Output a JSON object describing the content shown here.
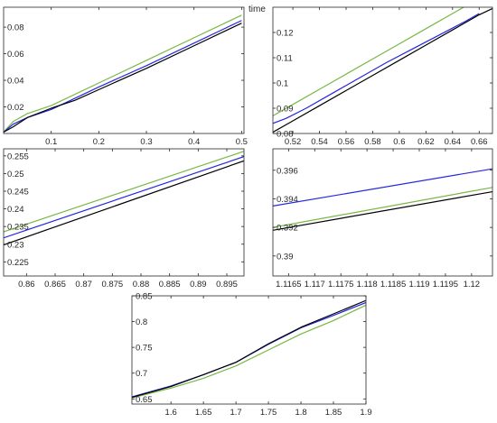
{
  "chart_data": [
    {
      "type": "line",
      "xlim": [
        0,
        0.505
      ],
      "ylim": [
        0,
        0.095
      ],
      "xticks": [
        0.1,
        0.2,
        0.3,
        0.4,
        0.5
      ],
      "yticks": [
        0.02,
        0.04,
        0.06,
        0.08
      ],
      "xtick_labels": [
        "0.1",
        "0.2",
        "0.3",
        "0.4",
        "0.5"
      ],
      "ytick_labels": [
        "0.02",
        "0.04",
        "0.06",
        "0.08"
      ],
      "series": [
        {
          "color": "#77b843",
          "x": [
            0,
            0.02,
            0.05,
            0.1,
            0.2,
            0.3,
            0.4,
            0.5
          ],
          "y": [
            0.001,
            0.009,
            0.015,
            0.021,
            0.038,
            0.055,
            0.072,
            0.089
          ]
        },
        {
          "color": "#2626e0",
          "x": [
            0,
            0.02,
            0.05,
            0.1,
            0.2,
            0.3,
            0.4,
            0.5
          ],
          "y": [
            0.001,
            0.007,
            0.012,
            0.018,
            0.035,
            0.051,
            0.068,
            0.085
          ]
        },
        {
          "color": "#000000",
          "x": [
            0,
            0.02,
            0.05,
            0.1,
            0.15,
            0.2,
            0.3,
            0.4,
            0.5
          ],
          "y": [
            0.001,
            0.005,
            0.012,
            0.019,
            0.025,
            0.033,
            0.049,
            0.066,
            0.083
          ]
        }
      ]
    },
    {
      "type": "line",
      "xlim": [
        0.505,
        0.67
      ],
      "ylim": [
        0.08,
        0.13
      ],
      "xticks": [
        0.52,
        0.54,
        0.56,
        0.58,
        0.6,
        0.62,
        0.64,
        0.66
      ],
      "yticks": [
        0.08,
        0.09,
        0.1,
        0.11,
        0.12
      ],
      "xtick_labels": [
        "0.52",
        "0.54",
        "0.56",
        "0.58",
        "0.6",
        "0.62",
        "0.64",
        "0.66"
      ],
      "ytick_labels": [
        "0.08",
        "0.09",
        "0.1",
        "0.11",
        "0.12"
      ],
      "corner_label": "time",
      "series": [
        {
          "color": "#77b843",
          "x": [
            0.505,
            0.52,
            0.54,
            0.56,
            0.58,
            0.6,
            0.62,
            0.64,
            0.65
          ],
          "y": [
            0.087,
            0.0915,
            0.0975,
            0.1035,
            0.1095,
            0.1155,
            0.1215,
            0.1275,
            0.1305
          ]
        },
        {
          "color": "#2626e0",
          "x": [
            0.505,
            0.515,
            0.53,
            0.55,
            0.57,
            0.59,
            0.61,
            0.63,
            0.65,
            0.66
          ],
          "y": [
            0.084,
            0.086,
            0.09,
            0.096,
            0.102,
            0.108,
            0.1135,
            0.119,
            0.1245,
            0.1275
          ]
        },
        {
          "color": "#000000",
          "x": [
            0.505,
            0.52,
            0.54,
            0.56,
            0.58,
            0.6,
            0.62,
            0.64,
            0.66,
            0.67
          ],
          "y": [
            0.0805,
            0.085,
            0.091,
            0.097,
            0.103,
            0.109,
            0.115,
            0.121,
            0.127,
            0.1295
          ]
        }
      ]
    },
    {
      "type": "line",
      "xlim": [
        0.856,
        0.898
      ],
      "ylim": [
        0.221,
        0.257
      ],
      "xticks": [
        0.86,
        0.865,
        0.87,
        0.875,
        0.88,
        0.885,
        0.89,
        0.895
      ],
      "yticks": [
        0.225,
        0.23,
        0.235,
        0.24,
        0.245,
        0.25,
        0.255
      ],
      "xtick_labels": [
        "0.86",
        "0.865",
        "0.87",
        "0.875",
        "0.88",
        "0.885",
        "0.89",
        "0.895"
      ],
      "ytick_labels": [
        "0.225",
        "0.23",
        "0.235",
        "0.24",
        "0.245",
        "0.25",
        "0.255"
      ],
      "series": [
        {
          "color": "#77b843",
          "x": [
            0.856,
            0.898
          ],
          "y": [
            0.2335,
            0.2563
          ]
        },
        {
          "color": "#2626e0",
          "x": [
            0.856,
            0.898
          ],
          "y": [
            0.2318,
            0.2548
          ]
        },
        {
          "color": "#000000",
          "x": [
            0.856,
            0.898
          ],
          "y": [
            0.2298,
            0.2536
          ]
        }
      ]
    },
    {
      "type": "line",
      "xlim": [
        1.1162,
        1.1204
      ],
      "ylim": [
        0.3886,
        0.3975
      ],
      "xticks": [
        1.1165,
        1.117,
        1.1175,
        1.118,
        1.1185,
        1.119,
        1.1195,
        1.12
      ],
      "yticks": [
        0.39,
        0.392,
        0.394,
        0.396
      ],
      "xtick_labels": [
        "1.1165",
        "1.117",
        "1.1175",
        "1.118",
        "1.1185",
        "1.119",
        "1.1195",
        "1.12"
      ],
      "ytick_labels": [
        "0.39",
        "0.392",
        "0.394",
        "0.396"
      ],
      "series": [
        {
          "color": "#2626e0",
          "x": [
            1.1162,
            1.1204
          ],
          "y": [
            0.3935,
            0.3961
          ]
        },
        {
          "color": "#77b843",
          "x": [
            1.1162,
            1.1204
          ],
          "y": [
            0.392,
            0.3948
          ]
        },
        {
          "color": "#000000",
          "x": [
            1.1162,
            1.1204
          ],
          "y": [
            0.3918,
            0.3945
          ]
        }
      ]
    },
    {
      "type": "line",
      "xlim": [
        1.54,
        1.9
      ],
      "ylim": [
        0.64,
        0.85
      ],
      "xticks": [
        1.6,
        1.65,
        1.7,
        1.75,
        1.8,
        1.85,
        1.9
      ],
      "yticks": [
        0.65,
        0.7,
        0.75,
        0.8,
        0.85
      ],
      "xtick_labels": [
        "1.6",
        "1.65",
        "1.7",
        "1.75",
        "1.8",
        "1.85",
        "1.9"
      ],
      "ytick_labels": [
        "0.65",
        "0.7",
        "0.75",
        "0.8",
        "0.85"
      ],
      "series": [
        {
          "color": "#77b843",
          "x": [
            1.54,
            1.6,
            1.65,
            1.7,
            1.75,
            1.8,
            1.85,
            1.9
          ],
          "y": [
            0.652,
            0.671,
            0.69,
            0.714,
            0.745,
            0.776,
            0.802,
            0.832
          ]
        },
        {
          "color": "#2626e0",
          "x": [
            1.54,
            1.6,
            1.65,
            1.7,
            1.75,
            1.8,
            1.85,
            1.9
          ],
          "y": [
            0.654,
            0.675,
            0.697,
            0.721,
            0.756,
            0.788,
            0.812,
            0.837
          ]
        },
        {
          "color": "#000000",
          "x": [
            1.54,
            1.6,
            1.65,
            1.7,
            1.75,
            1.8,
            1.85,
            1.9
          ],
          "y": [
            0.653,
            0.674,
            0.697,
            0.721,
            0.757,
            0.789,
            0.815,
            0.841
          ]
        }
      ]
    }
  ]
}
